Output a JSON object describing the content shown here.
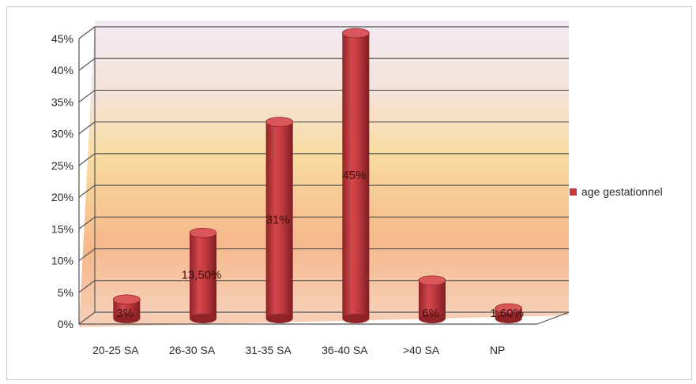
{
  "chart_data": {
    "type": "bar",
    "style": "3d-cylinder",
    "title": "",
    "xlabel": "",
    "ylabel": "",
    "categories": [
      "20-25 SA",
      "26-30 SA",
      "31-35 SA",
      "36-40 SA",
      ">40 SA",
      "NP"
    ],
    "series": [
      {
        "name": "age gestationnel",
        "values": [
          3,
          13.5,
          31,
          45,
          6,
          1.6
        ],
        "labels": [
          "3%",
          "13,50%",
          "31%",
          "45%",
          "6%",
          "1,60%"
        ]
      }
    ],
    "ylim": [
      0,
      45
    ],
    "yticks": [
      "0%",
      "5%",
      "10%",
      "15%",
      "20%",
      "25%",
      "30%",
      "35%",
      "40%",
      "45%"
    ],
    "grid": true,
    "legend": "right",
    "colors": {
      "bar": "#c0393f",
      "bar_dark": "#8f2327",
      "bar_light": "#e26a6c",
      "top": "#d9565a",
      "grid": "#555555",
      "wall_top": "#f3e8f0",
      "wall_mid": "#f7d89a",
      "wall_low": "#f5b989"
    }
  }
}
